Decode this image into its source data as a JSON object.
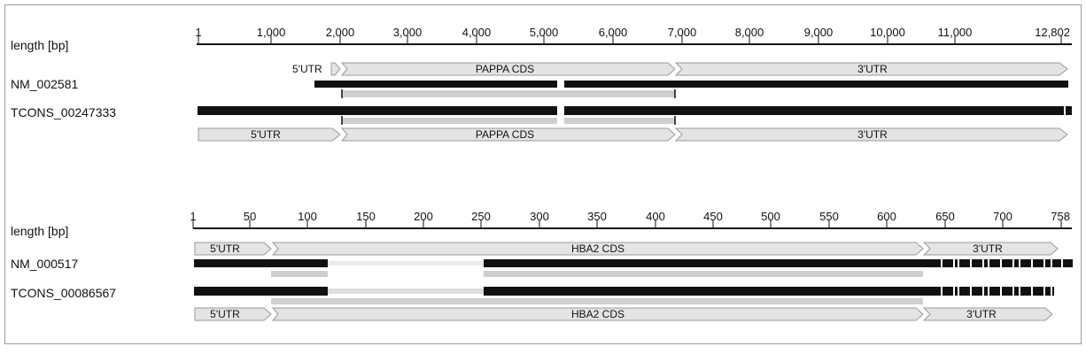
{
  "panels": [
    {
      "length_label": "length [bp]",
      "ticks": [
        "1",
        "1,000",
        "2,000",
        "3,000",
        "4,000",
        "5,000",
        "6,000",
        "7,000",
        "8,000",
        "9,000",
        "10,000",
        "11,000",
        "12,802"
      ],
      "tracks": [
        {
          "label": "NM_002581"
        },
        {
          "label": "TCONS_00247333"
        }
      ],
      "top_features": [
        {
          "label": "5'UTR",
          "kind": "label-only"
        },
        {
          "label": "PAPPA CDS"
        },
        {
          "label": "3'UTR"
        }
      ],
      "bottom_features": [
        {
          "label": "5'UTR"
        },
        {
          "label": "PAPPA CDS"
        },
        {
          "label": "3'UTR"
        }
      ]
    },
    {
      "length_label": "length [bp]",
      "ticks": [
        "1",
        "50",
        "100",
        "150",
        "200",
        "250",
        "300",
        "350",
        "400",
        "450",
        "500",
        "550",
        "600",
        "650",
        "700",
        "758"
      ],
      "tracks": [
        {
          "label": "NM_000517"
        },
        {
          "label": "TCONS_00086567"
        }
      ],
      "top_features": [
        {
          "label": "5'UTR"
        },
        {
          "label": "HBA2 CDS"
        },
        {
          "label": "3'UTR"
        }
      ],
      "bottom_features": [
        {
          "label": "5'UTR"
        },
        {
          "label": "HBA2 CDS"
        },
        {
          "label": "3'UTR"
        }
      ]
    }
  ],
  "colors": {
    "bar": "#111111",
    "feature_fill": "#e4e4e4",
    "feature_stroke": "#9a9a9a",
    "aligned_bar": "#cfcfcf",
    "axis": "#111111"
  }
}
